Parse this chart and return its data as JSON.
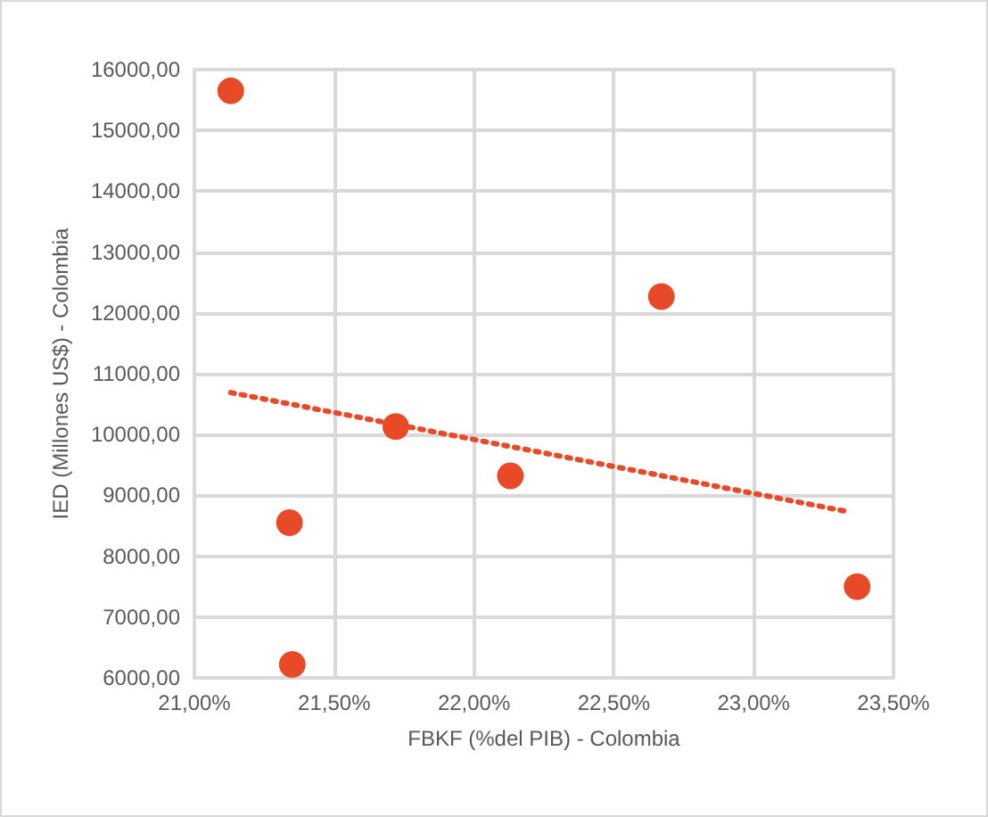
{
  "chart_data": {
    "type": "scatter",
    "xlabel": "FBKF (%del PIB) - Colombia",
    "ylabel": "IED (Millones US$) - Colombia",
    "series": [
      {
        "color": "#e84a27",
        "x": [
          21.13,
          21.34,
          21.35,
          21.72,
          22.13,
          22.67,
          23.37
        ],
        "values": [
          15650,
          8550,
          6220,
          10130,
          9320,
          12270,
          7500
        ]
      },
      {
        "type": "line",
        "color": "#e84a27",
        "line_style": "dotted",
        "marker": "none",
        "x": [
          21.13,
          23.34
        ],
        "values": [
          10690,
          8730
        ]
      }
    ],
    "marker": "circle",
    "xlim": [
      21,
      23.5
    ],
    "xticks": [
      {
        "value": 21,
        "label": "21,00%"
      },
      {
        "value": 21.5,
        "label": "21,50%"
      },
      {
        "value": 22,
        "label": "22,00%"
      },
      {
        "value": 22.5,
        "label": "22,50%"
      },
      {
        "value": 23,
        "label": "23,00%"
      },
      {
        "value": 23.5,
        "label": "23,50%"
      }
    ],
    "ylim": [
      6000,
      16000
    ],
    "yticks": [
      {
        "value": 6000,
        "label": "6000,00"
      },
      {
        "value": 7000,
        "label": "7000,00"
      },
      {
        "value": 8000,
        "label": "8000,00"
      },
      {
        "value": 9000,
        "label": "9000,00"
      },
      {
        "value": 10000,
        "label": "10000,00"
      },
      {
        "value": 11000,
        "label": "11000,00"
      },
      {
        "value": 12000,
        "label": "12000,00"
      },
      {
        "value": 13000,
        "label": "13000,00"
      },
      {
        "value": 14000,
        "label": "14000,00"
      },
      {
        "value": 15000,
        "label": "15000,00"
      },
      {
        "value": 16000,
        "label": "16000,00"
      }
    ],
    "grid": true
  }
}
